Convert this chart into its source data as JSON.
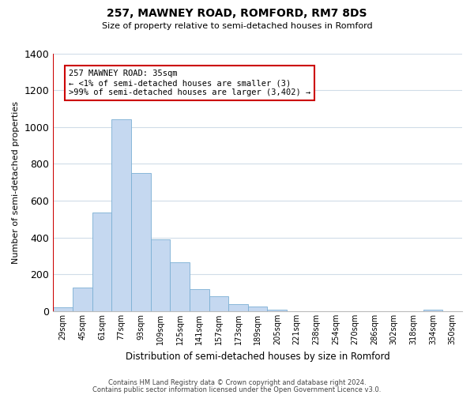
{
  "title": "257, MAWNEY ROAD, ROMFORD, RM7 8DS",
  "subtitle": "Size of property relative to semi-detached houses in Romford",
  "xlabel": "Distribution of semi-detached houses by size in Romford",
  "ylabel": "Number of semi-detached properties",
  "bin_labels": [
    "29sqm",
    "45sqm",
    "61sqm",
    "77sqm",
    "93sqm",
    "109sqm",
    "125sqm",
    "141sqm",
    "157sqm",
    "173sqm",
    "189sqm",
    "205sqm",
    "221sqm",
    "238sqm",
    "254sqm",
    "270sqm",
    "286sqm",
    "302sqm",
    "318sqm",
    "334sqm",
    "350sqm"
  ],
  "bar_values": [
    20,
    130,
    535,
    1040,
    750,
    390,
    265,
    120,
    80,
    40,
    25,
    10,
    0,
    0,
    0,
    0,
    0,
    0,
    0,
    10,
    0
  ],
  "bar_color": "#c5d8f0",
  "bar_edge_color": "#7bafd4",
  "highlight_line_color": "#cc0000",
  "annotation_line1": "257 MAWNEY ROAD: 35sqm",
  "annotation_line2": "← <1% of semi-detached houses are smaller (3)",
  "annotation_line3": ">99% of semi-detached houses are larger (3,402) →",
  "box_edge_color": "#cc0000",
  "ylim": [
    0,
    1400
  ],
  "yticks": [
    0,
    200,
    400,
    600,
    800,
    1000,
    1200,
    1400
  ],
  "footer_line1": "Contains HM Land Registry data © Crown copyright and database right 2024.",
  "footer_line2": "Contains public sector information licensed under the Open Government Licence v3.0.",
  "bg_color": "#ffffff",
  "plot_bg_color": "#ffffff",
  "grid_color": "#d0dce8"
}
